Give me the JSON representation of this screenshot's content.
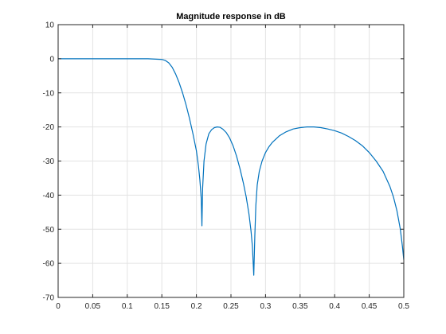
{
  "chart_data": {
    "type": "line",
    "title": "Magnitude response in dB",
    "xlabel": "",
    "ylabel": "",
    "xlim": [
      0,
      0.5
    ],
    "ylim": [
      -70,
      10
    ],
    "xticks": [
      0,
      0.05,
      0.1,
      0.15,
      0.2,
      0.25,
      0.3,
      0.35,
      0.4,
      0.45,
      0.5
    ],
    "xtick_labels": [
      "0",
      "0.05",
      "0.1",
      "0.15",
      "0.2",
      "0.25",
      "0.3",
      "0.35",
      "0.4",
      "0.45",
      "0.5"
    ],
    "yticks": [
      10,
      0,
      -10,
      -20,
      -30,
      -40,
      -50,
      -60,
      -70
    ],
    "ytick_labels": [
      "10",
      "0",
      "-10",
      "-20",
      "-30",
      "-40",
      "-50",
      "-60",
      "-70"
    ],
    "grid": true,
    "series": [
      {
        "color": "#0072bd",
        "x": [
          0,
          0.05,
          0.1,
          0.13,
          0.15,
          0.155,
          0.16,
          0.165,
          0.17,
          0.175,
          0.18,
          0.185,
          0.19,
          0.195,
          0.2,
          0.203,
          0.205,
          0.207,
          0.208,
          0.209,
          0.211,
          0.214,
          0.218,
          0.222,
          0.226,
          0.23,
          0.234,
          0.238,
          0.243,
          0.248,
          0.253,
          0.258,
          0.263,
          0.268,
          0.272,
          0.276,
          0.279,
          0.281,
          0.283,
          0.2845,
          0.286,
          0.288,
          0.291,
          0.295,
          0.3,
          0.305,
          0.31,
          0.32,
          0.33,
          0.34,
          0.35,
          0.36,
          0.37,
          0.38,
          0.39,
          0.4,
          0.41,
          0.42,
          0.43,
          0.44,
          0.45,
          0.46,
          0.47,
          0.48,
          0.485,
          0.49,
          0.495,
          0.498,
          0.5
        ],
        "y": [
          0,
          0,
          0,
          0,
          -0.2,
          -0.5,
          -1.2,
          -2.5,
          -4.5,
          -7,
          -10,
          -13.5,
          -17.5,
          -22,
          -27,
          -31.5,
          -35.5,
          -41,
          -49,
          -38,
          -30,
          -25,
          -22,
          -20.8,
          -20.2,
          -20,
          -20.1,
          -20.6,
          -21.6,
          -23.2,
          -25.5,
          -28.5,
          -32.2,
          -36.5,
          -40.5,
          -45.5,
          -50.5,
          -55,
          -63.5,
          -52,
          -43,
          -37,
          -33,
          -30,
          -27.5,
          -25.8,
          -24.5,
          -22.6,
          -21.4,
          -20.6,
          -20.2,
          -20,
          -20,
          -20.2,
          -20.6,
          -21.1,
          -21.8,
          -22.8,
          -24,
          -25.5,
          -27.5,
          -30,
          -33,
          -37.5,
          -40.5,
          -44.5,
          -50,
          -55,
          -59
        ]
      }
    ]
  }
}
